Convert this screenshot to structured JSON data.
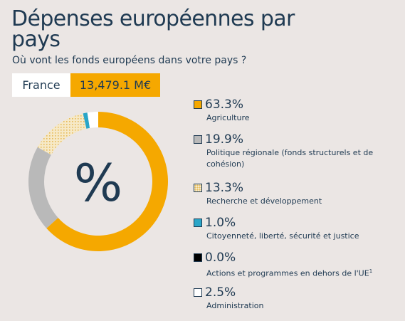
{
  "title": "Dépenses européennes par pays",
  "subtitle": "Où vont les fonds européens dans votre pays ?",
  "country": "France",
  "amount": "13,479.1 M€",
  "center_symbol": "%",
  "colors": {
    "agriculture": "#f5a800",
    "regional": "#b9b9b9",
    "research": "#f6e9c7",
    "research_pattern": "#e7bb5a",
    "citizenship": "#2aa6c8",
    "outside_eu": "#000000",
    "administration": "#ffffff",
    "text": "#1f3a52",
    "background": "#ebe6e4"
  },
  "chart_data": {
    "type": "pie",
    "variant": "donut",
    "title": "",
    "series": [
      {
        "pct_label": "63.3%",
        "value": 63.3,
        "label": "Agriculture",
        "sup": "",
        "swatch": "agriculture"
      },
      {
        "pct_label": "19.9%",
        "value": 19.9,
        "label": "Politique régionale (fonds structurels et de cohésion)",
        "sup": "",
        "swatch": "regional"
      },
      {
        "pct_label": "13.3%",
        "value": 13.3,
        "label": "Recherche et développement",
        "sup": "",
        "swatch": "research"
      },
      {
        "pct_label": "1.0%",
        "value": 1.0,
        "label": "Citoyenneté, liberté, sécurité et justice",
        "sup": "",
        "swatch": "citizenship"
      },
      {
        "pct_label": "0.0%",
        "value": 0.0,
        "label": "Actions et programmes en dehors de l'UE",
        "sup": "1",
        "swatch": "outside_eu"
      },
      {
        "pct_label": "2.5%",
        "value": 2.5,
        "label": "Administration",
        "sup": "",
        "swatch": "administration"
      }
    ]
  }
}
